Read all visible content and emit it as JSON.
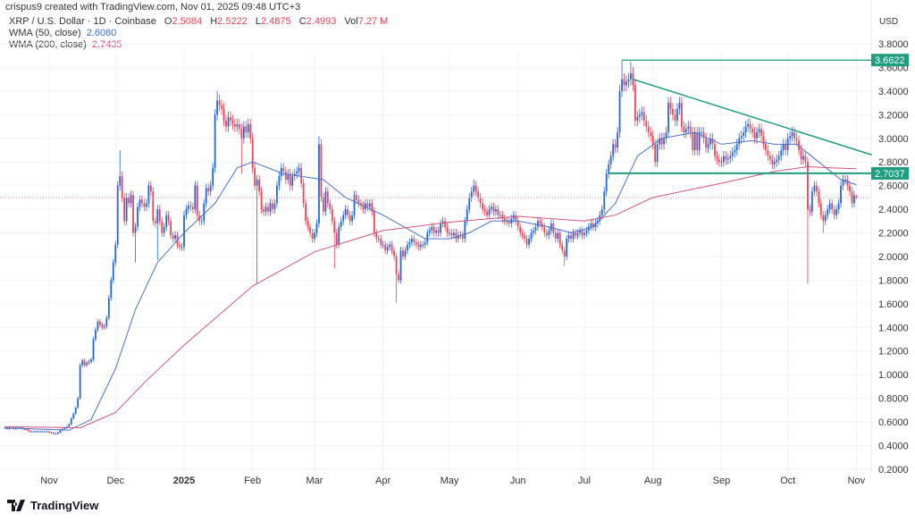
{
  "header": {
    "credit": "crispus9 created with TradingView.com, Nov 01, 2025 09:48 UTC+3"
  },
  "legend": {
    "symbol": "XRP / U.S. Dollar · 1D · Coinbase",
    "o_label": "O",
    "o": "2.5084",
    "h_label": "H",
    "h": "2.5222",
    "l_label": "L",
    "l": "2.4875",
    "c_label": "C",
    "c": "2.4993",
    "vol_label": "Vol",
    "vol": "7.27 M",
    "wma50_label": "WMA (50, close)",
    "wma50": "2.6080",
    "wma200_label": "WMA (200, close)",
    "wma200": "2.7435"
  },
  "logo": {
    "text": "TradingView"
  },
  "colors": {
    "up": "#2466d6",
    "down": "#e8455a",
    "wma50": "#4a72c9",
    "wma200": "#d0557a",
    "drawing": "#1f9d7f",
    "label_bg": "#1f9d7f",
    "grid": "#f0f2f5",
    "price_line": "#e58b97"
  },
  "chart_data": {
    "type": "candlestick",
    "currency_label": "USD",
    "ylim": [
      0.1,
      3.95
    ],
    "y_ticks": [
      "0.2000",
      "0.4000",
      "0.6000",
      "0.8000",
      "1.0000",
      "1.2000",
      "1.4000",
      "1.6000",
      "1.8000",
      "2.0000",
      "2.2000",
      "2.4000",
      "2.6000",
      "2.8000",
      "3.0000",
      "3.2000",
      "3.4000",
      "3.6000",
      "3.8000"
    ],
    "x_ticks": [
      {
        "label": "Nov",
        "date": "2024-11-01"
      },
      {
        "label": "Dec",
        "date": "2024-12-01"
      },
      {
        "label": "2025",
        "date": "2025-01-01",
        "bold": true
      },
      {
        "label": "Feb",
        "date": "2025-02-01"
      },
      {
        "label": "Mar",
        "date": "2025-03-01"
      },
      {
        "label": "Apr",
        "date": "2025-04-01"
      },
      {
        "label": "May",
        "date": "2025-05-01"
      },
      {
        "label": "Jun",
        "date": "2025-06-01"
      },
      {
        "label": "Jul",
        "date": "2025-07-01"
      },
      {
        "label": "Aug",
        "date": "2025-08-01"
      },
      {
        "label": "Sep",
        "date": "2025-09-01"
      },
      {
        "label": "Oct",
        "date": "2025-10-01"
      },
      {
        "label": "Nov",
        "date": "2025-11-01"
      }
    ],
    "daily_close_by_month": [
      {
        "month": "2024-10",
        "first_day": 12,
        "close": [
          0.55,
          0.54,
          0.55,
          0.55,
          0.54,
          0.55,
          0.55,
          0.55,
          0.54,
          0.54,
          0.53,
          0.52,
          0.52,
          0.52,
          0.52,
          0.52,
          0.52,
          0.52,
          0.52,
          0.52
        ]
      },
      {
        "month": "2024-11",
        "first_day": 1,
        "close": [
          0.51,
          0.51,
          0.5,
          0.5,
          0.51,
          0.53,
          0.54,
          0.55,
          0.56,
          0.58,
          0.63,
          0.67,
          0.72,
          0.8,
          1.08,
          1.12,
          1.08,
          1.1,
          1.11,
          1.13,
          1.3,
          1.38,
          1.45,
          1.42,
          1.4,
          1.41,
          1.48,
          1.65,
          1.8,
          1.95
        ]
      },
      {
        "month": "2024-12",
        "first_day": 1,
        "close": [
          2.1,
          2.6,
          2.68,
          2.5,
          2.3,
          2.5,
          2.45,
          2.52,
          2.2,
          2.25,
          2.42,
          2.48,
          2.45,
          2.42,
          2.45,
          2.6,
          2.55,
          2.3,
          2.28,
          2.4,
          2.3,
          2.2,
          2.25,
          2.35,
          2.3,
          2.18,
          2.15,
          2.18,
          2.1,
          2.08,
          2.08
        ]
      },
      {
        "month": "2025-01",
        "first_day": 1,
        "close": [
          2.35,
          2.4,
          2.43,
          2.42,
          2.4,
          2.6,
          2.35,
          2.3,
          2.3,
          2.45,
          2.58,
          2.55,
          2.6,
          2.75,
          3.2,
          3.32,
          3.28,
          3.25,
          3.15,
          3.1,
          3.18,
          3.15,
          3.12,
          3.1,
          3.12,
          3.08,
          3.0,
          3.1,
          3.05,
          3.12,
          3.0
        ]
      },
      {
        "month": "2025-02",
        "first_day": 1,
        "close": [
          2.75,
          2.6,
          2.65,
          2.55,
          2.4,
          2.38,
          2.42,
          2.38,
          2.45,
          2.4,
          2.45,
          2.6,
          2.68,
          2.75,
          2.72,
          2.65,
          2.7,
          2.6,
          2.68,
          2.7,
          2.72,
          2.75,
          2.62,
          2.45,
          2.3,
          2.25,
          2.2,
          2.15
        ]
      },
      {
        "month": "2025-03",
        "first_day": 1,
        "close": [
          2.2,
          2.28,
          2.95,
          2.5,
          2.38,
          2.55,
          2.45,
          2.4,
          2.3,
          2.2,
          2.1,
          2.25,
          2.3,
          2.35,
          2.4,
          2.35,
          2.3,
          2.35,
          2.52,
          2.48,
          2.45,
          2.43,
          2.4,
          2.45,
          2.42,
          2.45,
          2.38,
          2.2,
          2.15,
          2.15,
          2.1
        ]
      },
      {
        "month": "2025-04",
        "first_day": 1,
        "close": [
          2.1,
          2.05,
          2.08,
          2.1,
          2.05,
          2.0,
          1.85,
          1.8,
          2.05,
          2.0,
          2.05,
          2.1,
          2.12,
          2.15,
          2.12,
          2.1,
          2.08,
          2.1,
          2.1,
          2.12,
          2.2,
          2.22,
          2.25,
          2.2,
          2.22,
          2.2,
          2.28,
          2.3,
          2.25,
          2.2
        ]
      },
      {
        "month": "2025-05",
        "first_day": 1,
        "close": [
          2.2,
          2.18,
          2.2,
          2.15,
          2.18,
          2.18,
          2.15,
          2.3,
          2.4,
          2.5,
          2.55,
          2.6,
          2.55,
          2.5,
          2.45,
          2.4,
          2.38,
          2.35,
          2.4,
          2.42,
          2.38,
          2.4,
          2.35,
          2.35,
          2.32,
          2.3,
          2.3,
          2.28,
          2.32,
          2.35,
          2.3
        ]
      },
      {
        "month": "2025-06",
        "first_day": 1,
        "close": [
          2.25,
          2.2,
          2.18,
          2.15,
          2.1,
          2.15,
          2.2,
          2.22,
          2.25,
          2.3,
          2.28,
          2.25,
          2.2,
          2.18,
          2.22,
          2.28,
          2.2,
          2.15,
          2.2,
          2.1,
          2.05,
          2.0,
          2.15,
          2.18,
          2.15,
          2.2,
          2.18,
          2.2,
          2.22,
          2.18
        ]
      },
      {
        "month": "2025-07",
        "first_day": 1,
        "close": [
          2.2,
          2.22,
          2.25,
          2.28,
          2.25,
          2.28,
          2.3,
          2.35,
          2.4,
          2.55,
          2.7,
          2.78,
          2.85,
          2.95,
          2.92,
          3.05,
          3.4,
          3.5,
          3.45,
          3.48,
          3.5,
          3.55,
          3.45,
          3.15,
          3.18,
          3.2,
          3.22,
          3.15,
          3.1,
          3.05,
          3.02
        ]
      },
      {
        "month": "2025-08",
        "first_day": 1,
        "close": [
          2.95,
          2.8,
          2.95,
          3.0,
          2.95,
          3.0,
          3.05,
          3.3,
          3.25,
          3.2,
          3.15,
          3.25,
          3.3,
          3.1,
          3.05,
          3.08,
          3.1,
          3.05,
          2.9,
          3.05,
          2.9,
          3.05,
          3.05,
          3.0,
          2.92,
          2.95,
          3.0,
          2.95,
          2.85,
          2.82,
          2.8
        ]
      },
      {
        "month": "2025-09",
        "first_day": 1,
        "close": [
          2.8,
          2.85,
          2.82,
          2.83,
          2.85,
          2.88,
          2.9,
          2.95,
          3.0,
          3.02,
          3.05,
          3.1,
          3.12,
          3.08,
          3.05,
          3.0,
          3.05,
          3.08,
          3.02,
          2.95,
          2.9,
          2.85,
          2.82,
          2.78,
          2.8,
          2.82,
          2.85,
          2.9,
          2.95,
          2.9
        ]
      },
      {
        "month": "2025-10",
        "first_day": 1,
        "close": [
          3.0,
          3.02,
          3.05,
          3.0,
          2.98,
          2.9,
          2.82,
          2.85,
          2.8,
          2.4,
          2.38,
          2.55,
          2.6,
          2.55,
          2.45,
          2.35,
          2.3,
          2.35,
          2.4,
          2.45,
          2.4,
          2.35,
          2.4,
          2.45,
          2.6,
          2.65,
          2.65,
          2.6,
          2.55,
          2.45,
          2.52
        ]
      },
      {
        "month": "2025-11",
        "first_day": 1,
        "close": [
          2.4993
        ]
      }
    ],
    "notable_wicks": [
      {
        "date": "2024-12-03",
        "high": 2.9
      },
      {
        "date": "2024-12-10",
        "low": 1.95
      },
      {
        "date": "2024-12-20",
        "low": 1.97
      },
      {
        "date": "2025-01-16",
        "high": 3.4
      },
      {
        "date": "2025-01-27",
        "low": 2.7
      },
      {
        "date": "2025-02-03",
        "low": 1.77
      },
      {
        "date": "2025-03-03",
        "high": 3.02
      },
      {
        "date": "2025-03-10",
        "low": 1.9
      },
      {
        "date": "2025-04-07",
        "low": 1.61
      },
      {
        "date": "2025-05-12",
        "high": 2.65
      },
      {
        "date": "2025-06-22",
        "low": 1.92
      },
      {
        "date": "2025-07-18",
        "high": 3.66
      },
      {
        "date": "2025-07-22",
        "high": 3.65
      },
      {
        "date": "2025-10-10",
        "low": 1.77
      },
      {
        "date": "2025-10-17",
        "low": 2.2
      },
      {
        "date": "2025-11-01",
        "high": 2.5222,
        "low": 2.4875,
        "open": 2.5084
      }
    ],
    "series": [
      {
        "name": "WMA (50, close)",
        "points": [
          [
            "2024-10-12",
            0.55
          ],
          [
            "2024-11-10",
            0.53
          ],
          [
            "2024-11-20",
            0.62
          ],
          [
            "2024-12-01",
            1.05
          ],
          [
            "2024-12-10",
            1.55
          ],
          [
            "2024-12-20",
            1.95
          ],
          [
            "2025-01-01",
            2.2
          ],
          [
            "2025-01-15",
            2.45
          ],
          [
            "2025-01-25",
            2.75
          ],
          [
            "2025-02-01",
            2.8
          ],
          [
            "2025-02-15",
            2.7
          ],
          [
            "2025-03-05",
            2.65
          ],
          [
            "2025-03-15",
            2.5
          ],
          [
            "2025-04-01",
            2.35
          ],
          [
            "2025-04-20",
            2.15
          ],
          [
            "2025-05-01",
            2.15
          ],
          [
            "2025-05-10",
            2.2
          ],
          [
            "2025-05-20",
            2.3
          ],
          [
            "2025-06-01",
            2.3
          ],
          [
            "2025-06-15",
            2.25
          ],
          [
            "2025-06-25",
            2.2
          ],
          [
            "2025-07-05",
            2.25
          ],
          [
            "2025-07-15",
            2.45
          ],
          [
            "2025-07-25",
            2.85
          ],
          [
            "2025-08-05",
            3.0
          ],
          [
            "2025-08-20",
            3.05
          ],
          [
            "2025-09-01",
            2.95
          ],
          [
            "2025-09-15",
            2.98
          ],
          [
            "2025-09-25",
            2.95
          ],
          [
            "2025-10-05",
            2.95
          ],
          [
            "2025-10-15",
            2.8
          ],
          [
            "2025-10-25",
            2.65
          ],
          [
            "2025-11-01",
            2.608
          ]
        ]
      },
      {
        "name": "WMA (200, close)",
        "points": [
          [
            "2024-10-12",
            0.56
          ],
          [
            "2024-11-15",
            0.55
          ],
          [
            "2024-12-01",
            0.68
          ],
          [
            "2024-12-15",
            0.95
          ],
          [
            "2025-01-01",
            1.25
          ],
          [
            "2025-02-01",
            1.75
          ],
          [
            "2025-03-01",
            2.04
          ],
          [
            "2025-04-01",
            2.22
          ],
          [
            "2025-05-01",
            2.29
          ],
          [
            "2025-06-01",
            2.34
          ],
          [
            "2025-07-01",
            2.3
          ],
          [
            "2025-07-15",
            2.35
          ],
          [
            "2025-08-01",
            2.5
          ],
          [
            "2025-09-01",
            2.62
          ],
          [
            "2025-09-25",
            2.72
          ],
          [
            "2025-10-10",
            2.76
          ],
          [
            "2025-10-20",
            2.75
          ],
          [
            "2025-11-01",
            2.7435
          ]
        ]
      }
    ],
    "drawings": [
      {
        "type": "horizontal",
        "price": 3.6622,
        "from": "2025-07-18",
        "label": "3.6622"
      },
      {
        "type": "horizontal",
        "price": 2.7037,
        "from": "2025-07-12",
        "label": "2.7037"
      },
      {
        "type": "trendline",
        "from": [
          "2025-07-23",
          3.5
        ],
        "to": [
          "2025-11-08",
          2.86
        ]
      }
    ],
    "last_price": 2.4993
  }
}
